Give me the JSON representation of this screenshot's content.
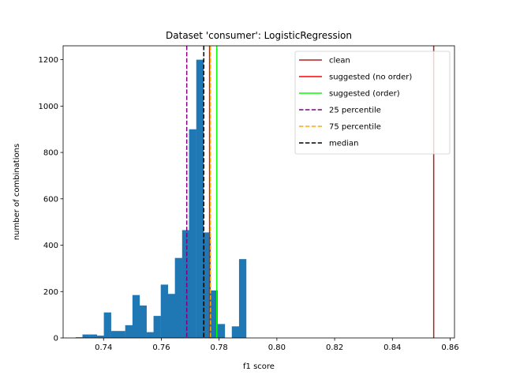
{
  "chart_data": {
    "type": "bar",
    "title": "Dataset 'consumer': LogisticRegression",
    "xlabel": "f1 score",
    "ylabel": "number of combinations",
    "xlim": [
      0.726,
      0.8615
    ],
    "ylim": [
      0,
      1260
    ],
    "xticks": [
      0.74,
      0.76,
      0.78,
      0.8,
      0.82,
      0.84,
      0.86
    ],
    "xtick_labels": [
      "0.74",
      "0.76",
      "0.78",
      "0.80",
      "0.82",
      "0.84",
      "0.86"
    ],
    "yticks": [
      0,
      200,
      400,
      600,
      800,
      1000,
      1200
    ],
    "ytick_labels": [
      "0",
      "200",
      "400",
      "600",
      "800",
      "1000",
      "1200"
    ],
    "bar_color": "#1f77b4",
    "bin_width": 0.00246,
    "histogram": {
      "bin_starts": [
        0.7303,
        0.7327,
        0.7352,
        0.7376,
        0.7401,
        0.7426,
        0.745,
        0.7475,
        0.75,
        0.7524,
        0.7549,
        0.7573,
        0.7598,
        0.7623,
        0.7647,
        0.7672,
        0.7696,
        0.7721,
        0.7746,
        0.777,
        0.7795,
        0.7819,
        0.7844,
        0.7869,
        0.7893,
        0.7918
      ],
      "counts": [
        3,
        15,
        15,
        10,
        110,
        30,
        30,
        55,
        185,
        140,
        25,
        95,
        230,
        190,
        345,
        465,
        900,
        1200,
        455,
        205,
        60,
        0,
        50,
        340,
        0,
        0
      ]
    },
    "vlines": [
      {
        "name": "clean",
        "x": 0.8543,
        "color": "#b22222",
        "style": "solid"
      },
      {
        "name": "suggested (no order)",
        "x": 0.7767,
        "color": "#ff0000",
        "style": "solid"
      },
      {
        "name": "suggested (order)",
        "x": 0.7792,
        "color": "#00ff00",
        "style": "solid"
      },
      {
        "name": "25 percentile",
        "x": 0.7688,
        "color": "#800080",
        "style": "dashed"
      },
      {
        "name": "75 percentile",
        "x": 0.777,
        "color": "#ffa500",
        "style": "dashed"
      },
      {
        "name": "median",
        "x": 0.7747,
        "color": "#000000",
        "style": "dashed"
      }
    ],
    "legend_position": "top-right",
    "grid": false
  }
}
